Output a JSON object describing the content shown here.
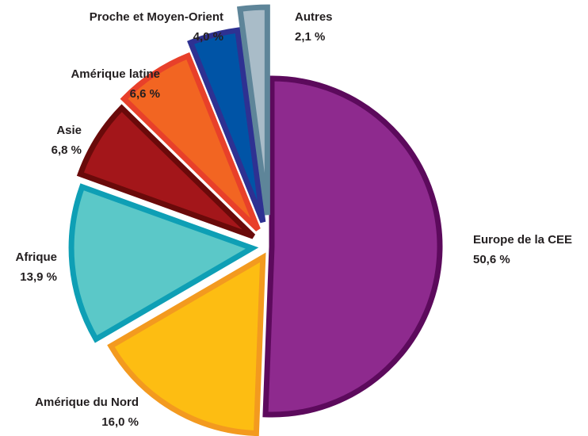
{
  "chart_data": {
    "type": "pie",
    "categories": [
      "Europe de la CEE",
      "Amérique du Nord",
      "Afrique",
      "Asie",
      "Amérique latine",
      "Proche et Moyen-Orient",
      "Autres"
    ],
    "values": [
      50.6,
      16.0,
      13.9,
      6.8,
      6.6,
      4.0,
      2.1
    ],
    "value_labels": [
      "50,6 %",
      "16,0 %",
      "13,9 %",
      "6,8 %",
      "6,6 %",
      "4,0 %",
      "2,1 %"
    ],
    "colors": [
      "#8e2a8e",
      "#fdbd12",
      "#5bc8c8",
      "#a3161a",
      "#f26522",
      "#0054a6",
      "#a9bcc8"
    ],
    "edge_colors": [
      "#5c0a5c",
      "#f39a1f",
      "#0e9fb5",
      "#6a0a0a",
      "#e8402a",
      "#2e3192",
      "#5e8599"
    ]
  }
}
